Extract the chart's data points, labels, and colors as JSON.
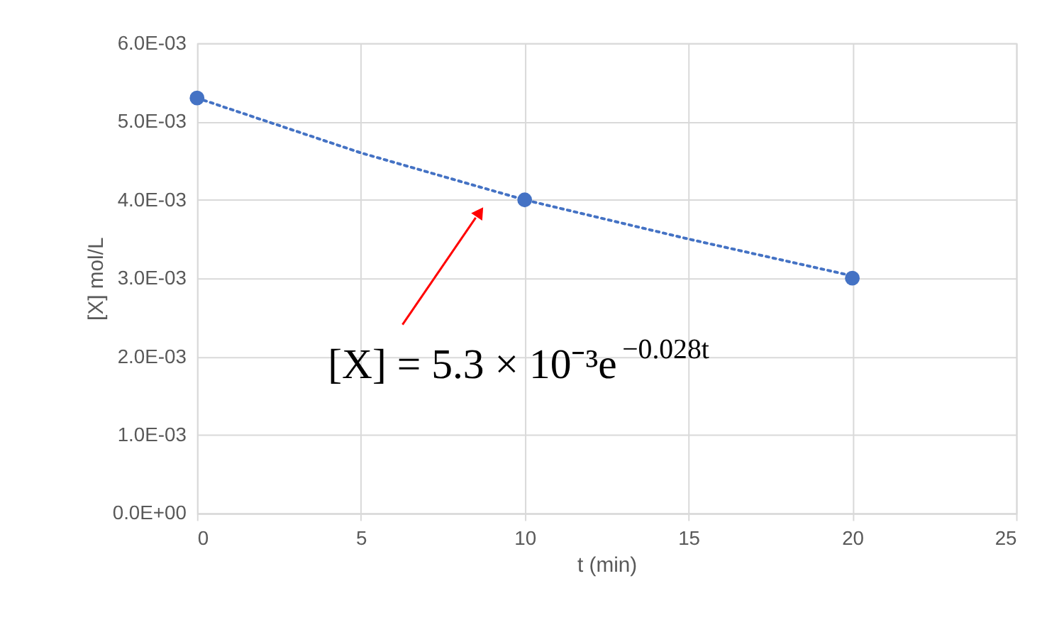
{
  "chart_data": {
    "type": "scatter",
    "xlabel": "t (min)",
    "ylabel": "[X] mol/L",
    "xlim": [
      0,
      25
    ],
    "xticks": [
      0,
      5,
      10,
      15,
      20,
      25
    ],
    "ylim": [
      0,
      0.006
    ],
    "yticks": [
      {
        "value": 0,
        "label": "0.0E+00"
      },
      {
        "value": 0.001,
        "label": "1.0E-03"
      },
      {
        "value": 0.002,
        "label": "2.0E-03"
      },
      {
        "value": 0.003,
        "label": "3.0E-03"
      },
      {
        "value": 0.004,
        "label": "4.0E-03"
      },
      {
        "value": 0.005,
        "label": "5.0E-03"
      },
      {
        "value": 0.006,
        "label": "6.0E-03"
      }
    ],
    "grid": true,
    "series": [
      {
        "type": "line",
        "color": "#4472c4",
        "line_style": "dotted",
        "marker": "none",
        "x": [
          0,
          5,
          10,
          15,
          20
        ],
        "values": [
          0.0053,
          0.0046,
          0.004,
          0.0035,
          0.00303
        ]
      },
      {
        "color": "#4472c4",
        "marker": "circle",
        "x": [
          0,
          10,
          20
        ],
        "values": [
          0.0053,
          0.004,
          0.003
        ]
      }
    ],
    "annotations": [
      "[X] = 5.3 × 10⁻³e$^{−0.028t}$"
    ]
  }
}
